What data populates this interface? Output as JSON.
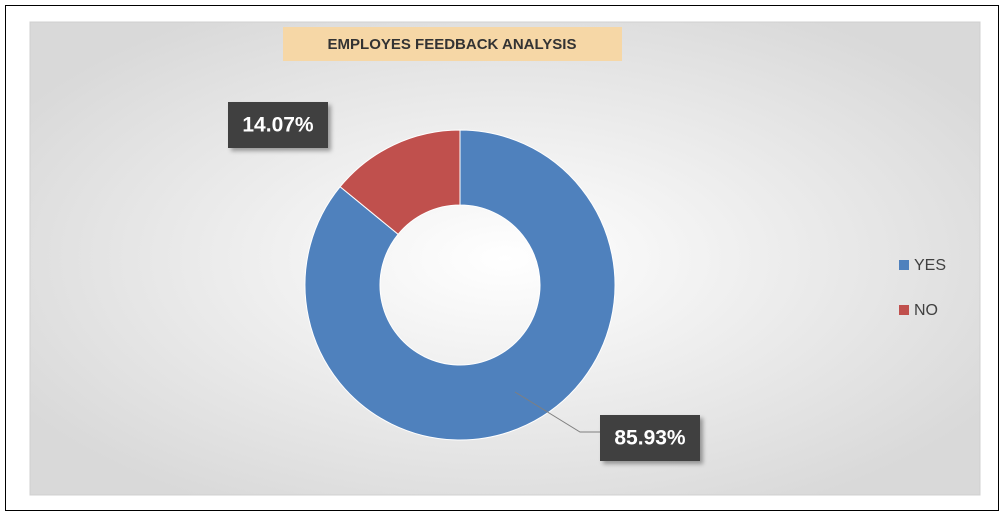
{
  "chart_data": {
    "type": "donut",
    "title": "EMPLOYES FEEDBACK ANALYSIS",
    "categories": [
      "YES",
      "NO"
    ],
    "values": [
      85.93,
      14.07
    ],
    "value_labels": [
      "85.93%",
      "14.07%"
    ],
    "colors": [
      "#4f81bd",
      "#c0504d"
    ],
    "legend": "right"
  }
}
